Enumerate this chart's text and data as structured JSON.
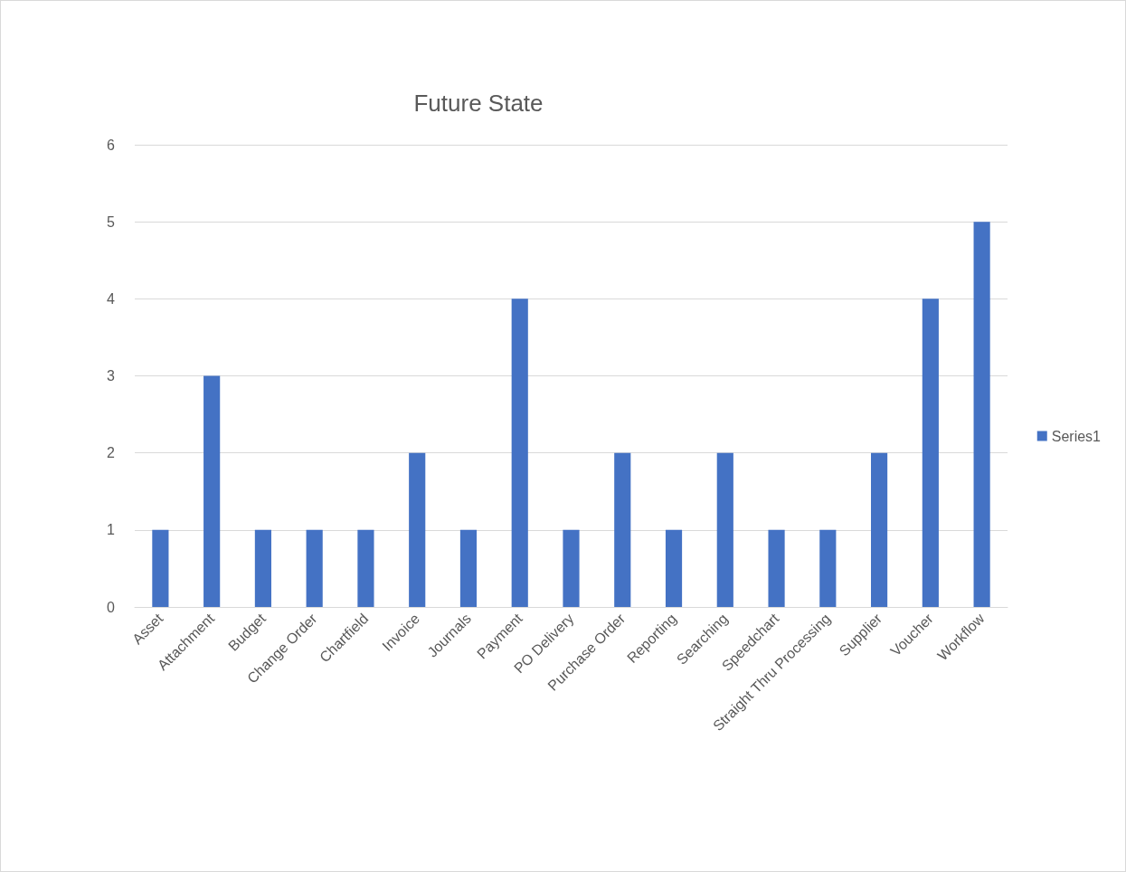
{
  "chart_data": {
    "type": "bar",
    "title": "Future State",
    "categories": [
      "Asset",
      "Attachment",
      "Budget",
      "Change Order",
      "Chartfield",
      "Invoice",
      "Journals",
      "Payment",
      "PO Delivery",
      "Purchase Order",
      "Reporting",
      "Searching",
      "Speedchart",
      "Straight Thru Processing",
      "Supplier",
      "Voucher",
      "Workflow"
    ],
    "series": [
      {
        "name": "Series1",
        "color": "#4472c4",
        "values": [
          1,
          3,
          1,
          1,
          1,
          2,
          1,
          4,
          1,
          2,
          1,
          2,
          1,
          1,
          2,
          4,
          5
        ]
      }
    ],
    "ylim": [
      0,
      6
    ],
    "yticks": [
      0,
      1,
      2,
      3,
      4,
      5,
      6
    ],
    "grid": "y",
    "legend": "right"
  }
}
